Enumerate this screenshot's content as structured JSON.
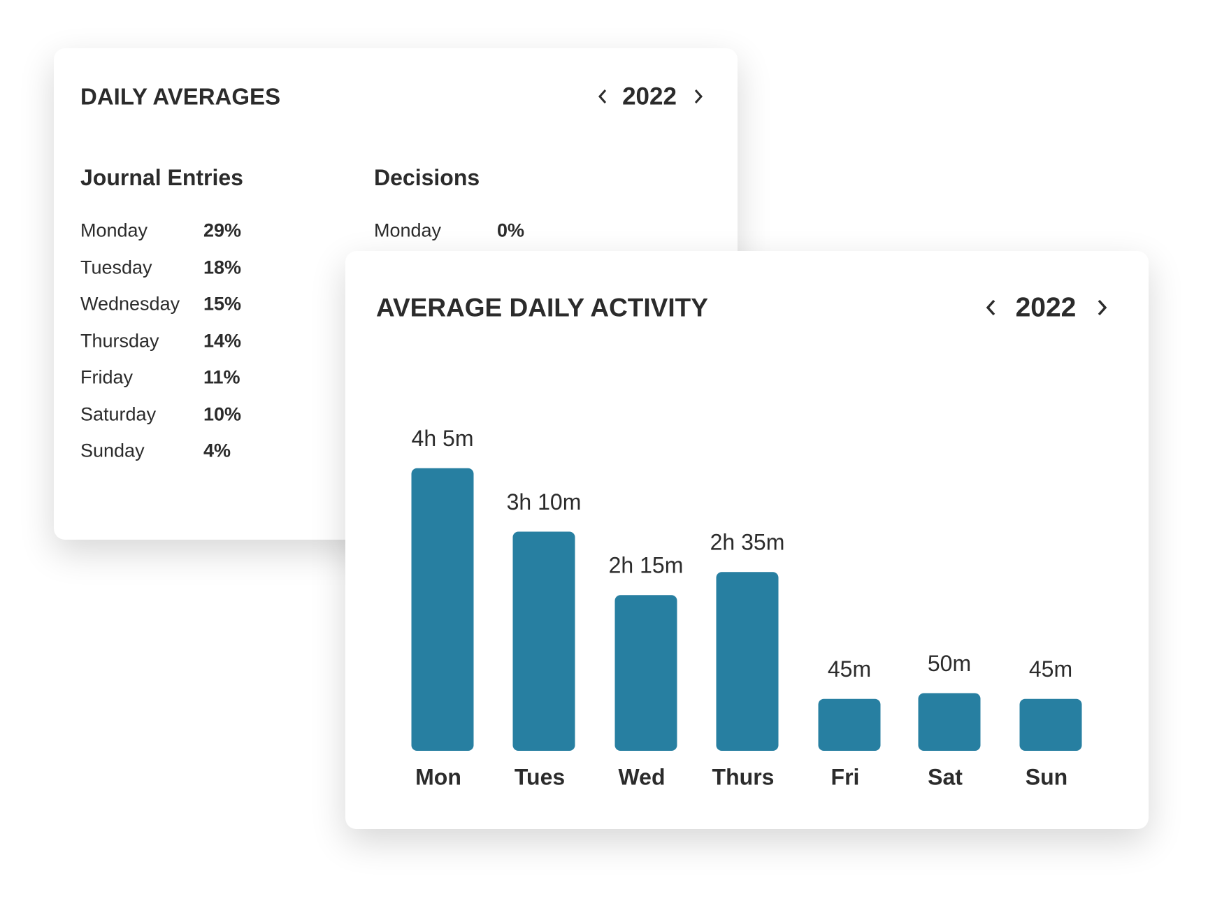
{
  "daily_averages": {
    "title": "DAILY AVERAGES",
    "year": "2022",
    "journal_entries": {
      "heading": "Journal Entries",
      "rows": [
        [
          "Monday",
          "29%"
        ],
        [
          "Tuesday",
          "18%"
        ],
        [
          "Wednesday",
          "15%"
        ],
        [
          "Thursday",
          "14%"
        ],
        [
          "Friday",
          "11%"
        ],
        [
          "Saturday",
          "10%"
        ],
        [
          "Sunday",
          "4%"
        ]
      ]
    },
    "decisions": {
      "heading": "Decisions",
      "rows": [
        [
          "Monday",
          "0%"
        ]
      ]
    }
  },
  "chart_data": {
    "type": "bar",
    "title": "AVERAGE DAILY ACTIVITY",
    "year": "2022",
    "categories": [
      "Mon",
      "Tues",
      "Wed",
      "Thurs",
      "Fri",
      "Sat",
      "Sun"
    ],
    "values": [
      245,
      190,
      135,
      155,
      45,
      50,
      45
    ],
    "value_labels": [
      "4h 5m",
      "3h 10m",
      "2h 15m",
      "2h 35m",
      "45m",
      "50m",
      "45m"
    ],
    "color": "#277fa1"
  }
}
